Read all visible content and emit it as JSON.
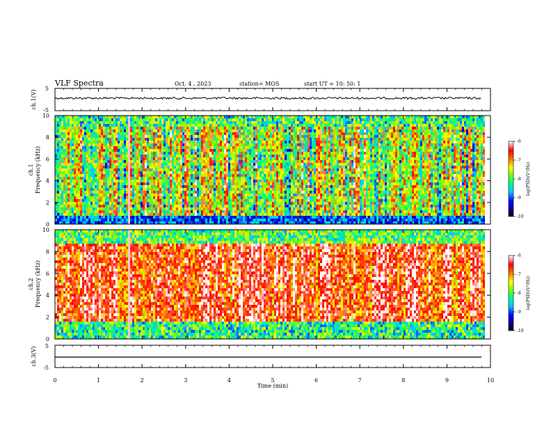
{
  "header": {
    "title": "VLF Spectra",
    "date": "Oct. 4 , 2023",
    "station": "station= MOS",
    "start": "start UT =  10: 50: 1"
  },
  "chart_data": [
    {
      "id": "ch1-voltage",
      "type": "line",
      "ylabel": "ch.1(V)",
      "ylim": [
        -5,
        5
      ],
      "yticks": [
        5,
        -5
      ],
      "xlim": [
        0,
        10
      ],
      "series": [
        {
          "values_note": "",
          "level": 0
        }
      ],
      "color": "#000000"
    },
    {
      "id": "ch1-spectrogram",
      "type": "heatmap",
      "ylabel": "ch.1\nFrequency (kHz)",
      "ylabel_line1": "ch.1",
      "ylabel_line2": "Frequency (kHz)",
      "ylim": [
        0,
        10
      ],
      "yticks": [
        0,
        2,
        4,
        6,
        8,
        10
      ],
      "xlim": [
        0,
        9.85
      ],
      "colorbar": {
        "label": "log(PSD)(V²/Hz)",
        "ticks": [
          -6,
          -7,
          -8,
          -9,
          -10
        ],
        "range": [
          -10,
          -6
        ]
      },
      "features": {
        "gap_at_min": 1.72
      }
    },
    {
      "id": "ch2-spectrogram",
      "type": "heatmap",
      "ylabel_line1": "ch.2",
      "ylabel_line2": "Frequency (kHz)",
      "ylim": [
        0,
        10
      ],
      "yticks": [
        0,
        2,
        4,
        6,
        8,
        10
      ],
      "xlim": [
        0,
        9.85
      ],
      "colorbar": {
        "label": "log(PSD)(V²/Hz)",
        "ticks": [
          -6,
          -7,
          -8,
          -9,
          -10
        ],
        "range": [
          -10,
          -6
        ]
      },
      "features": {
        "gap_at_min": 1.72
      }
    },
    {
      "id": "ch3-voltage",
      "type": "line",
      "ylabel": "ch.3(V)",
      "ylim": [
        -5,
        5
      ],
      "yticks": [
        5,
        -5
      ],
      "xlim": [
        0,
        10
      ],
      "series": [
        {
          "level": -1
        }
      ],
      "color": "#000000"
    }
  ],
  "xaxis": {
    "label": "Time (min)",
    "ticks": [
      "0",
      "1",
      "2",
      "3",
      "4",
      "5",
      "6",
      "7",
      "8",
      "9",
      "10"
    ]
  },
  "colors": {
    "axis": "#000000",
    "background": "#ffffff"
  }
}
